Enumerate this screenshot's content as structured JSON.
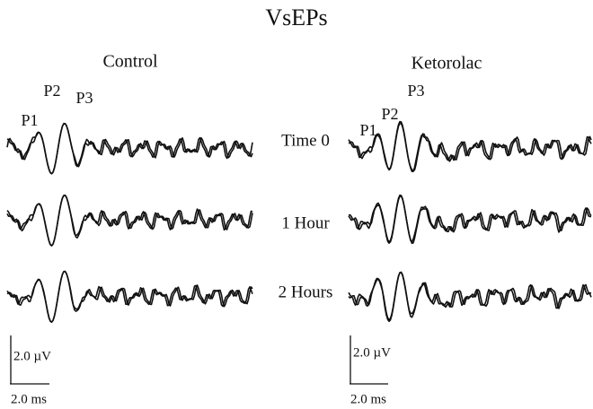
{
  "title": "VsEPs",
  "panels": [
    {
      "title": "Control",
      "peaks": [
        "P1",
        "P2",
        "P3"
      ]
    },
    {
      "title": "Ketorolac",
      "peaks": [
        "P1",
        "P2",
        "P3"
      ]
    }
  ],
  "rows": [
    "Time 0",
    "1 Hour",
    "2 Hours"
  ],
  "scale_bars": [
    {
      "voltage": "2.0 µV",
      "time": "2.0 ms"
    },
    {
      "voltage": "2.0 µV",
      "time": "2.0 ms"
    }
  ]
}
